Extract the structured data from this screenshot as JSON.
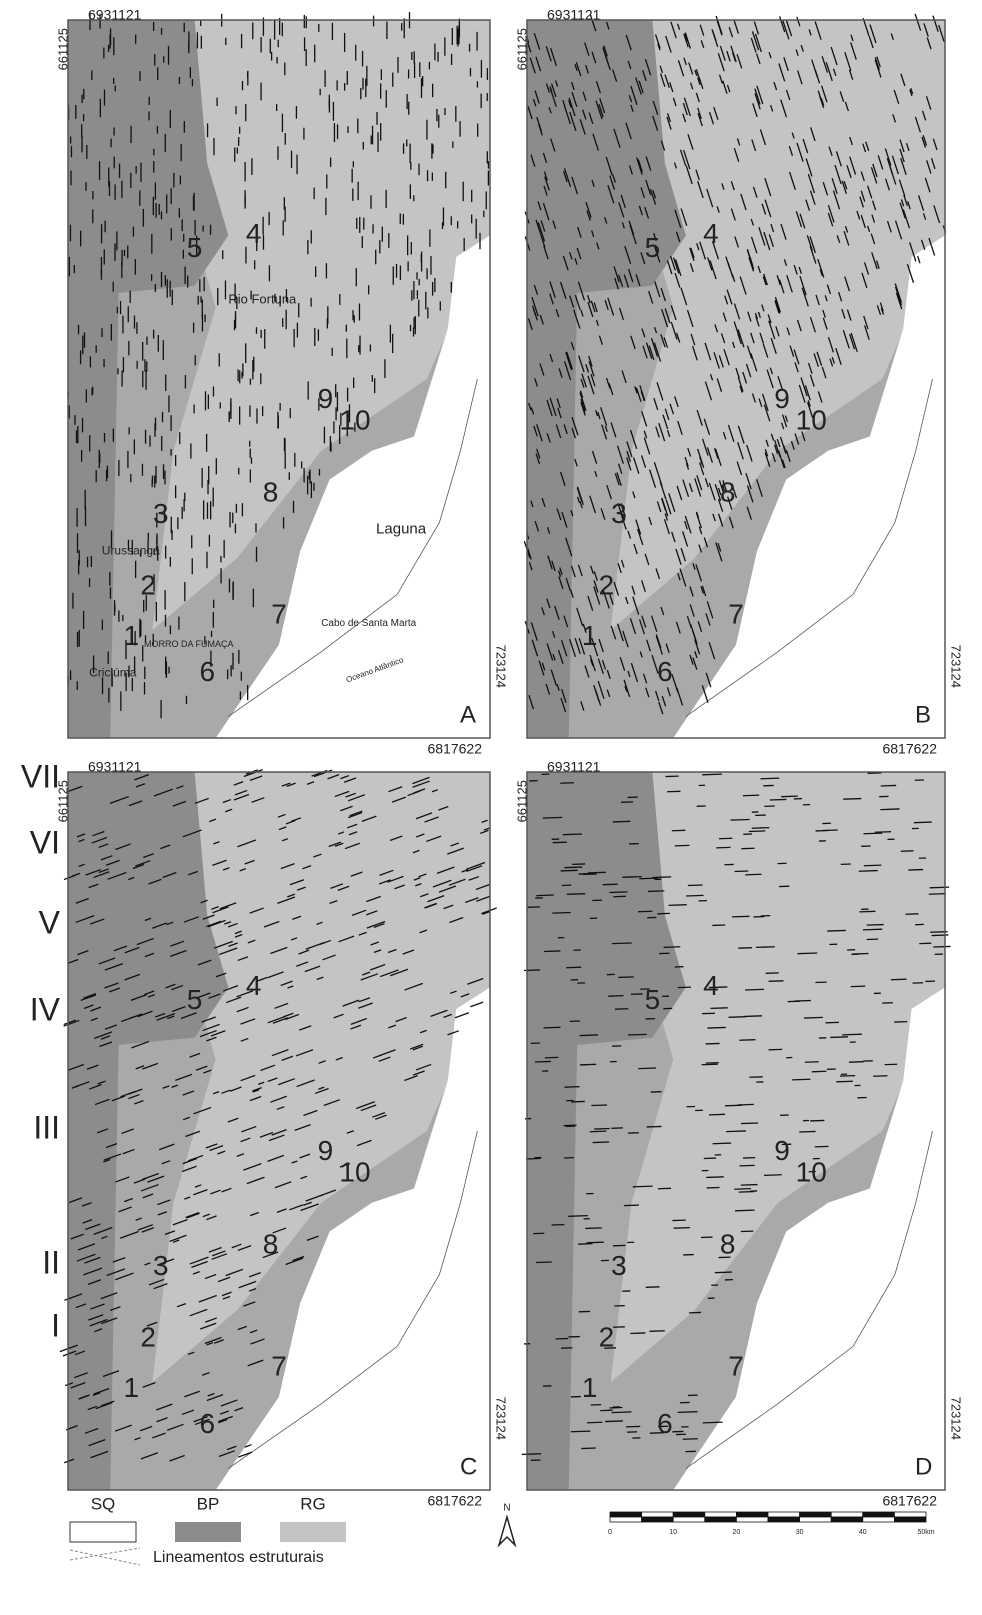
{
  "panels": [
    {
      "letter": "A",
      "top": "6931121",
      "left": "661125",
      "right": "723124",
      "bottom": "6817622",
      "numbers": [
        "1",
        "2",
        "3",
        "4",
        "5",
        "6",
        "7",
        "8",
        "9",
        "10"
      ],
      "places": [
        "Rio Fortuna",
        "Urussanga",
        "MORRO DA FUMAÇA",
        "Criciúma",
        "Laguna",
        "Cabo de Santa Marta",
        "Oceano Atlântico"
      ]
    },
    {
      "letter": "B",
      "top": "6931121",
      "left": "661125",
      "right": "723124",
      "bottom": "6817622",
      "numbers": [
        "1",
        "2",
        "3",
        "4",
        "5",
        "6",
        "7",
        "8",
        "9",
        "10"
      ]
    },
    {
      "letter": "C",
      "top": "6931121",
      "left": "661125",
      "right": "723124",
      "bottom": "6817622",
      "numbers": [
        "1",
        "2",
        "3",
        "4",
        "5",
        "6",
        "7",
        "8",
        "9",
        "10"
      ]
    },
    {
      "letter": "D",
      "top": "6931121",
      "left": "661125",
      "right": "723124",
      "bottom": "6817622",
      "numbers": [
        "1",
        "2",
        "3",
        "4",
        "5",
        "6",
        "7",
        "8",
        "9",
        "10"
      ]
    }
  ],
  "row_labels": [
    "VII",
    "VI",
    "V",
    "IV",
    "III",
    "II",
    "I"
  ],
  "legend": {
    "items": [
      "SQ",
      "BP",
      "RG"
    ],
    "lines": "Lineamentos estruturais"
  },
  "north": "N",
  "scale": [
    "0",
    "10",
    "20",
    "30",
    "40",
    "50km"
  ]
}
